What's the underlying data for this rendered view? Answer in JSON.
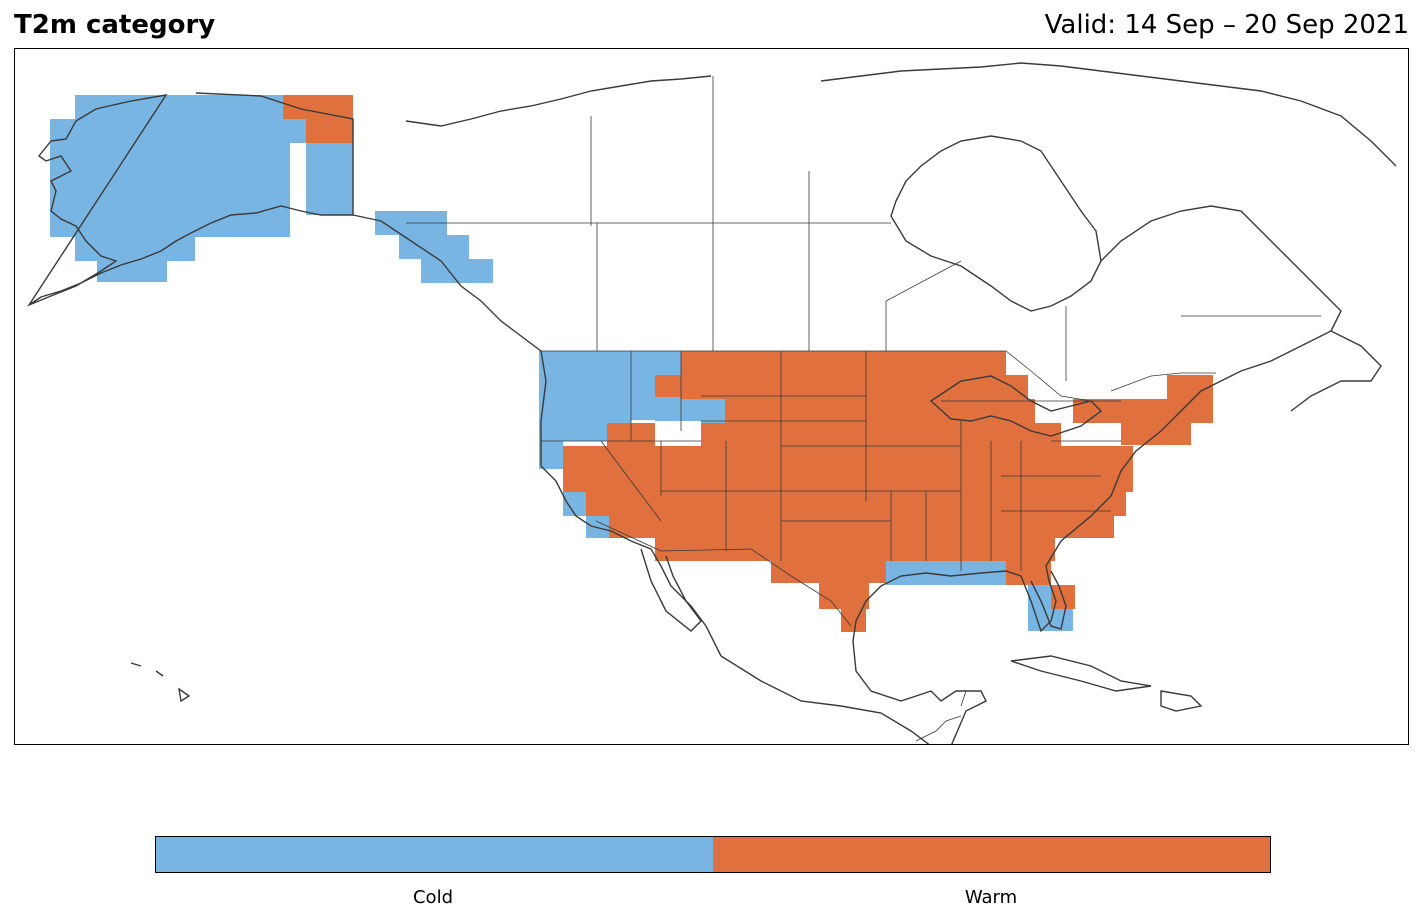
{
  "title": "T2m category",
  "valid": "Valid: 14 Sep – 20 Sep 2021",
  "colors": {
    "cold": "#79b5e2",
    "warm": "#e0703d",
    "outline": "#3a3a3a"
  },
  "legend": {
    "items": [
      {
        "key": "cold",
        "label": "Cold"
      },
      {
        "key": "warm",
        "label": "Warm"
      }
    ]
  }
}
